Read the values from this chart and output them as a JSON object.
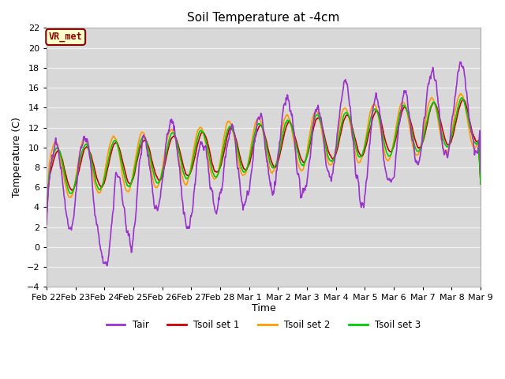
{
  "title": "Soil Temperature at -4cm",
  "xlabel": "Time",
  "ylabel": "Temperature (C)",
  "ylim": [
    -4,
    22
  ],
  "yticks": [
    -4,
    -2,
    0,
    2,
    4,
    6,
    8,
    10,
    12,
    14,
    16,
    18,
    20,
    22
  ],
  "fig_bg": "#ffffff",
  "plot_bg": "#d8d8d8",
  "grid_color": "#f0f0f0",
  "annotation_text": "VR_met",
  "annotation_bg": "#ffffcc",
  "annotation_border": "#8B0000",
  "legend_entries": [
    "Tair",
    "Tsoil set 1",
    "Tsoil set 2",
    "Tsoil set 3"
  ],
  "line_colors": [
    "#9933cc",
    "#cc0000",
    "#ff9900",
    "#00cc00"
  ],
  "x_tick_labels": [
    "Feb 22",
    "Feb 23",
    "Feb 24",
    "Feb 25",
    "Feb 26",
    "Feb 27",
    "Feb 28",
    "Mar 1",
    "Mar 2",
    "Mar 3",
    "Mar 4",
    "Mar 5",
    "Mar 6",
    "Mar 7",
    "Mar 8",
    "Mar 9"
  ],
  "x_tick_positions": [
    0,
    1,
    2,
    3,
    4,
    5,
    6,
    7,
    8,
    9,
    10,
    11,
    12,
    13,
    14,
    15
  ]
}
